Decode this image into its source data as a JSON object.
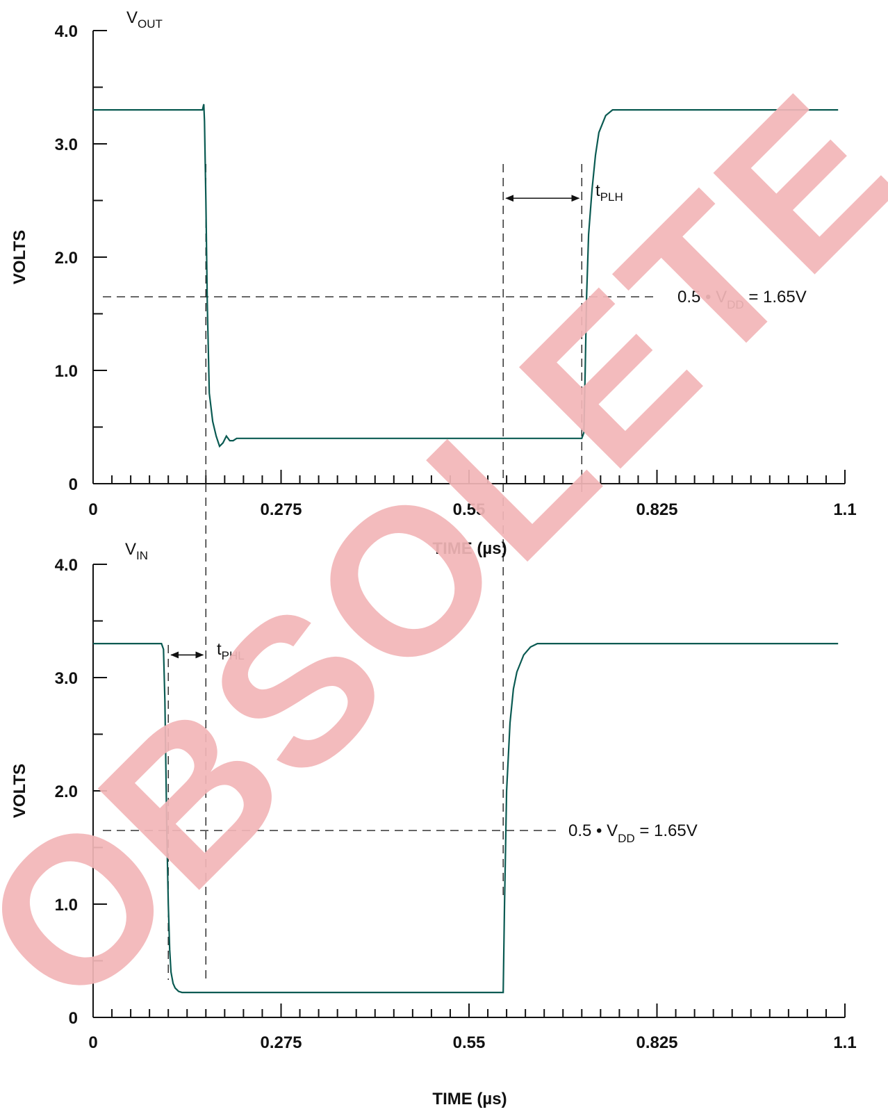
{
  "watermark": {
    "text": "OBSOLETE",
    "color": "#f2b6b8"
  },
  "colors": {
    "trace": "#0a5a52",
    "axis": "#111111",
    "guide": "#222222"
  },
  "chart_data": [
    {
      "type": "line",
      "signal_label": {
        "main": "V",
        "sub": "OUT"
      },
      "xlabel": "TIME (µs)",
      "ylabel": "VOLTS",
      "xlim": [
        0,
        1.1
      ],
      "ylim": [
        0,
        4.0
      ],
      "xticks": [
        "0",
        "0.275",
        "0.55",
        "0.825",
        "1.1"
      ],
      "yticks": [
        "0",
        "1.0",
        "2.0",
        "3.0",
        "4.0"
      ],
      "grid": false,
      "series": [
        {
          "x": [
            0,
            0.16,
            0.162,
            0.163,
            0.165,
            0.167,
            0.17,
            0.175,
            0.18,
            0.185,
            0.19,
            0.195,
            0.2,
            0.205,
            0.21,
            0.22,
            0.715,
            0.718,
            0.72,
            0.722,
            0.725,
            0.73,
            0.735,
            0.74,
            0.75,
            0.76,
            0.775,
            1.09
          ],
          "y": [
            3.3,
            3.3,
            3.35,
            3.2,
            2.5,
            1.6,
            0.8,
            0.55,
            0.42,
            0.33,
            0.36,
            0.42,
            0.38,
            0.38,
            0.4,
            0.4,
            0.4,
            0.45,
            1.0,
            1.65,
            2.2,
            2.6,
            2.9,
            3.1,
            3.25,
            3.3,
            3.3,
            3.3
          ]
        }
      ],
      "threshold": {
        "value": 1.65,
        "label": {
          "pre": "0.5 • V",
          "sub": "DD",
          "post": " = 1.65V"
        }
      },
      "marker_lines": [
        0.165,
        0.6,
        0.715
      ],
      "delay_label": {
        "main": "t",
        "sub": "PLH"
      },
      "delay_arrow": {
        "from": 0.6,
        "to": 0.715,
        "y": 2.52
      }
    },
    {
      "type": "line",
      "signal_label": {
        "main": "V",
        "sub": "IN"
      },
      "xlabel": "TIME (µs)",
      "ylabel": "VOLTS",
      "xlim": [
        0,
        1.1
      ],
      "ylim": [
        0,
        4.0
      ],
      "xticks": [
        "0",
        "0.275",
        "0.55",
        "0.825",
        "1.1"
      ],
      "yticks": [
        "0",
        "1.0",
        "2.0",
        "3.0",
        "4.0"
      ],
      "grid": false,
      "series": [
        {
          "x": [
            0,
            0.1,
            0.103,
            0.105,
            0.108,
            0.11,
            0.112,
            0.114,
            0.117,
            0.12,
            0.125,
            0.13,
            0.14,
            0.6,
            0.602,
            0.605,
            0.61,
            0.615,
            0.62,
            0.63,
            0.64,
            0.65,
            0.66,
            1.09
          ],
          "y": [
            3.3,
            3.3,
            3.25,
            2.8,
            1.6,
            1.0,
            0.6,
            0.4,
            0.3,
            0.26,
            0.23,
            0.22,
            0.22,
            0.22,
            1.0,
            2.0,
            2.6,
            2.9,
            3.05,
            3.2,
            3.27,
            3.3,
            3.3,
            3.3
          ]
        }
      ],
      "threshold": {
        "value": 1.65,
        "label": {
          "pre": "0.5 • V",
          "sub": "DD",
          "post": " = 1.65V"
        }
      },
      "marker_lines": [
        0.11,
        0.165,
        0.6
      ],
      "delay_label": {
        "main": "t",
        "sub": "PHL"
      },
      "delay_arrow": {
        "from": 0.11,
        "to": 0.165,
        "y": 3.2
      }
    }
  ]
}
